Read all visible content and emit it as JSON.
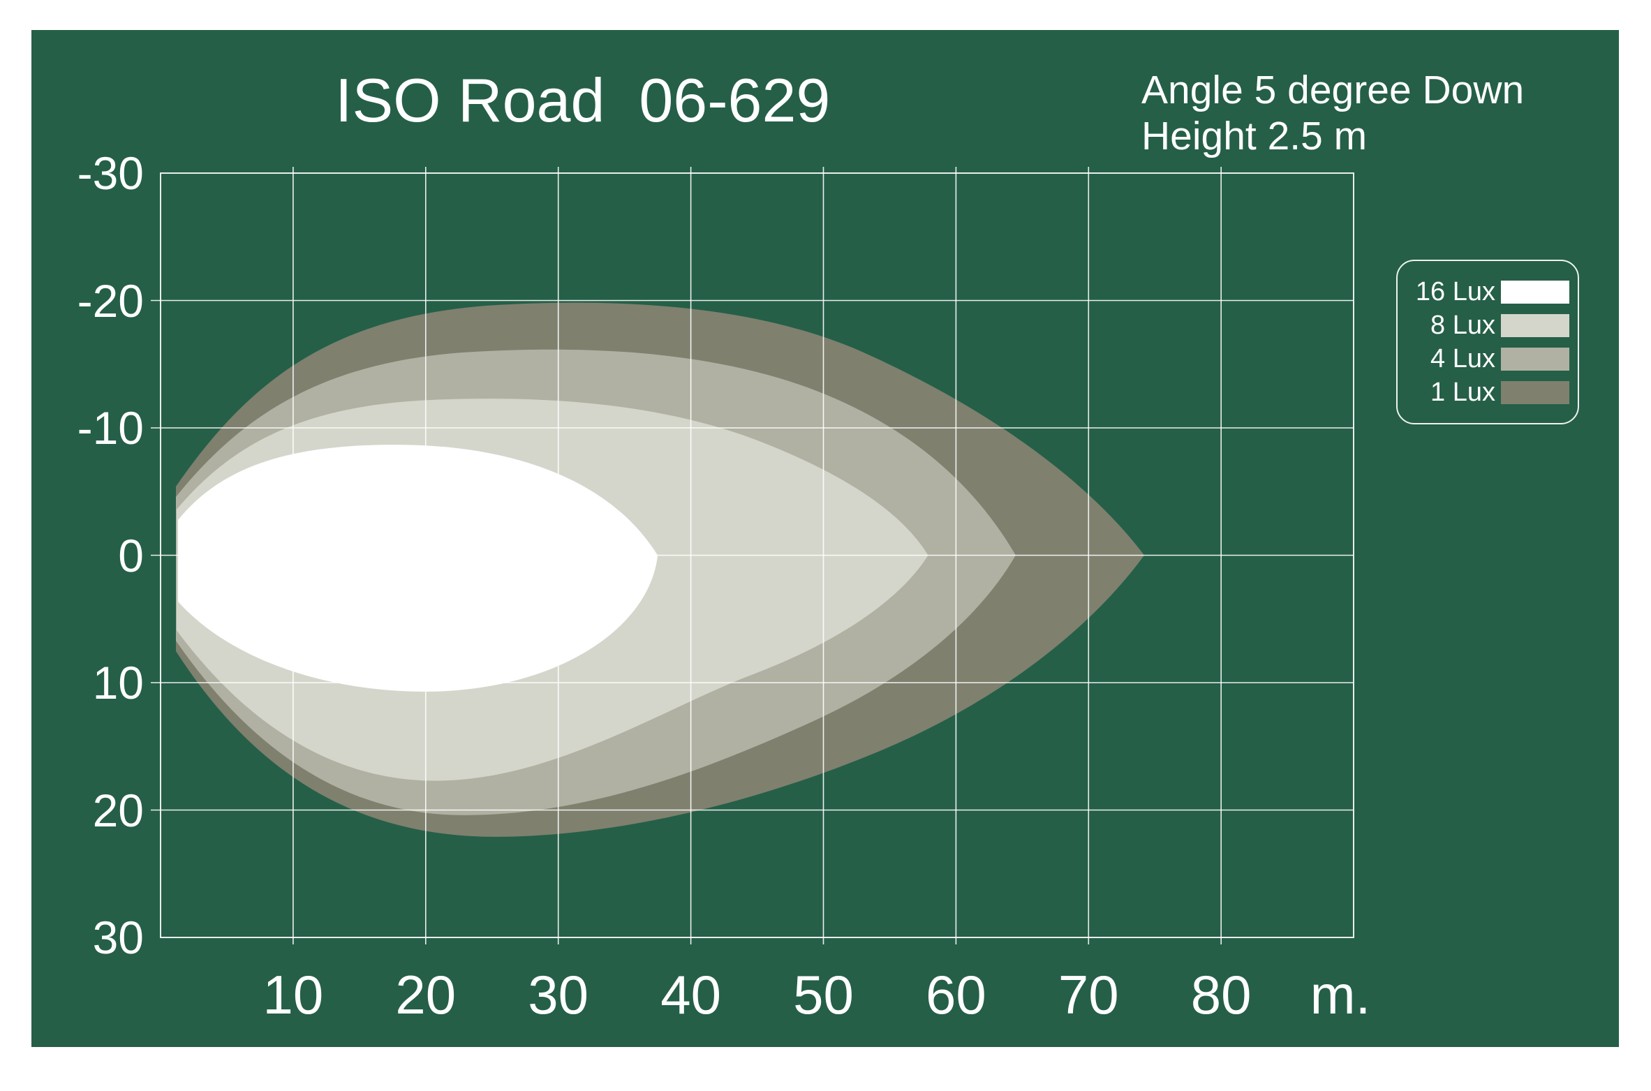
{
  "title": "ISO Road  06-629",
  "subtitle": {
    "line1": "Angle 5 degree Down",
    "line2": "Height 2.5 m"
  },
  "colors": {
    "page_bg": "#ffffff",
    "panel_bg": "#255F48",
    "grid": "rgba(255,255,255,0.9)",
    "text": "#ffffff",
    "lux16": "#ffffff",
    "lux8": "#d5d6cb",
    "lux4": "#b0b1a2",
    "lux1": "#7f806e"
  },
  "legend": {
    "items": [
      {
        "label": "16 Lux",
        "color": "#ffffff"
      },
      {
        "label": "8 Lux",
        "color": "#d5d6cb"
      },
      {
        "label": "4 Lux",
        "color": "#b0b1a2"
      },
      {
        "label": "1 Lux",
        "color": "#7f806e"
      }
    ]
  },
  "axes": {
    "x": {
      "ticks": [
        "10",
        "20",
        "30",
        "40",
        "50",
        "60",
        "70",
        "80"
      ],
      "tick_values": [
        10,
        20,
        30,
        40,
        50,
        60,
        70,
        80
      ],
      "unit": "m.",
      "range": [
        0,
        90
      ]
    },
    "y": {
      "ticks": [
        "-30",
        "-20",
        "-10",
        "0",
        "10",
        "20",
        "30"
      ],
      "tick_values": [
        -30,
        -20,
        -10,
        0,
        10,
        20,
        30
      ],
      "range": [
        -30,
        30
      ]
    }
  },
  "chart_data": {
    "type": "area",
    "description": "Isolux contour map of headlamp beam on road surface; distance in metres along x, lateral offset in metres on y (negative = up/left of axis).",
    "title": "ISO Road  06-629",
    "annotations": [
      "Angle 5 degree Down",
      "Height 2.5 m"
    ],
    "x_range_m": [
      0,
      90
    ],
    "y_range_m": [
      -30,
      30
    ],
    "grid": true,
    "legend_position": "right",
    "contours": [
      {
        "level_lux": 1,
        "color": "#7f806e",
        "min_distance_m": 1.2,
        "max_distance_m": 74.2,
        "lateral_extent_m": [
          -20.3,
          22.2
        ],
        "outline": [
          [
            "M",
            1.16,
            -5.4
          ],
          [
            "C",
            6.85,
            -14.0,
            13.2,
            -18.7,
            24.7,
            -19.6
          ],
          [
            "C",
            35.3,
            -20.3,
            45.8,
            -19.5,
            53.7,
            -15.6
          ],
          [
            "C",
            62.7,
            -11.3,
            70.0,
            -5.8,
            74.2,
            0.0
          ],
          [
            "C",
            70.0,
            6.0,
            62.7,
            11.8,
            53.7,
            15.6
          ],
          [
            "C",
            44.8,
            19.4,
            34.2,
            22.2,
            24.7,
            22.1
          ],
          [
            "C",
            14.2,
            21.9,
            6.85,
            16.7,
            1.16,
            7.53
          ],
          [
            "Z"
          ]
        ]
      },
      {
        "level_lux": 4,
        "color": "#b0b1a2",
        "min_distance_m": 1.2,
        "max_distance_m": 64.5,
        "lateral_extent_m": [
          -16.6,
          20.5
        ],
        "outline": [
          [
            "M",
            1.16,
            -4.58
          ],
          [
            "C",
            6.32,
            -11.3,
            12.6,
            -15.1,
            22.6,
            -15.9
          ],
          [
            "C",
            32.6,
            -16.6,
            42.1,
            -15.9,
            49.5,
            -12.9
          ],
          [
            "C",
            56.9,
            -9.9,
            61.6,
            -5.2,
            64.5,
            0.0
          ],
          [
            "C",
            61.6,
            5.2,
            56.3,
            9.6,
            49.5,
            12.9
          ],
          [
            "C",
            42.1,
            16.4,
            32.6,
            20.5,
            22.6,
            20.4
          ],
          [
            "C",
            13.2,
            20.3,
            6.32,
            14.5,
            1.16,
            6.71
          ],
          [
            "Z"
          ]
        ]
      },
      {
        "level_lux": 8,
        "color": "#d5d6cb",
        "min_distance_m": 1.2,
        "max_distance_m": 57.9,
        "lateral_extent_m": [
          -12.6,
          17.8
        ],
        "outline": [
          [
            "M",
            1.21,
            -3.59
          ],
          [
            "C",
            5.79,
            -9.3,
            11.6,
            -11.8,
            20.5,
            -12.2
          ],
          [
            "C",
            29.5,
            -12.6,
            37.9,
            -11.8,
            44.8,
            -9.1
          ],
          [
            "C",
            51.1,
            -6.6,
            55.8,
            -3.6,
            57.9,
            0.0
          ],
          [
            "C",
            55.8,
            3.5,
            51.1,
            6.8,
            44.8,
            9.3
          ],
          [
            "C",
            37.9,
            12.0,
            29.5,
            17.8,
            20.5,
            17.7
          ],
          [
            "C",
            12.1,
            17.6,
            5.79,
            12.3,
            1.21,
            5.89
          ],
          [
            "Z"
          ]
        ]
      },
      {
        "level_lux": 16,
        "color": "#ffffff",
        "min_distance_m": 1.3,
        "max_distance_m": 37.5,
        "lateral_extent_m": [
          -8.7,
          10.8
        ],
        "outline": [
          [
            "M",
            1.32,
            -2.77
          ],
          [
            "C",
            4.74,
            -7.15,
            10.0,
            -8.63,
            17.4,
            -8.68
          ],
          [
            "C",
            25.8,
            -8.74,
            33.7,
            -6.33,
            37.5,
            0.0
          ],
          [
            "C",
            36.9,
            5.7,
            30.0,
            10.5,
            20.5,
            10.7
          ],
          [
            "C",
            11.6,
            10.8,
            4.74,
            7.64,
            1.32,
            3.64
          ],
          [
            "Z"
          ]
        ]
      }
    ]
  }
}
